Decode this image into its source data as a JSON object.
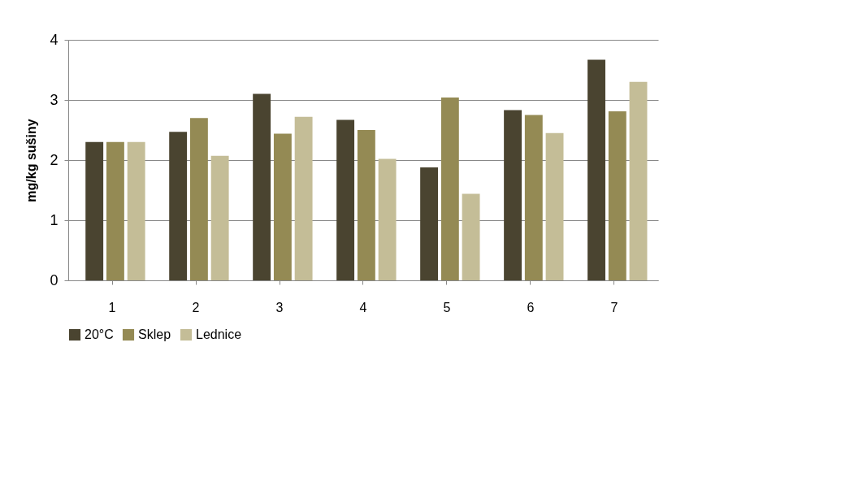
{
  "chart_data": {
    "type": "bar",
    "ylabel": "mg/kg sušiny",
    "categories": [
      "1",
      "2",
      "3",
      "4",
      "5",
      "6",
      "7"
    ],
    "series": [
      {
        "name": "20°C",
        "color": "#4a4430",
        "values": [
          2.3,
          2.47,
          3.1,
          2.67,
          1.88,
          2.83,
          3.67
        ]
      },
      {
        "name": "Sklep",
        "color": "#948a54",
        "values": [
          2.3,
          2.7,
          2.44,
          2.5,
          3.04,
          2.75,
          2.81
        ]
      },
      {
        "name": "Lednice",
        "color": "#c4bd97",
        "values": [
          2.3,
          2.07,
          2.72,
          2.02,
          1.44,
          2.45,
          3.3
        ]
      }
    ],
    "ylim": [
      0,
      4
    ],
    "yticks": [
      0,
      1,
      2,
      3,
      4
    ],
    "grid": "y",
    "legend": "bottom"
  }
}
